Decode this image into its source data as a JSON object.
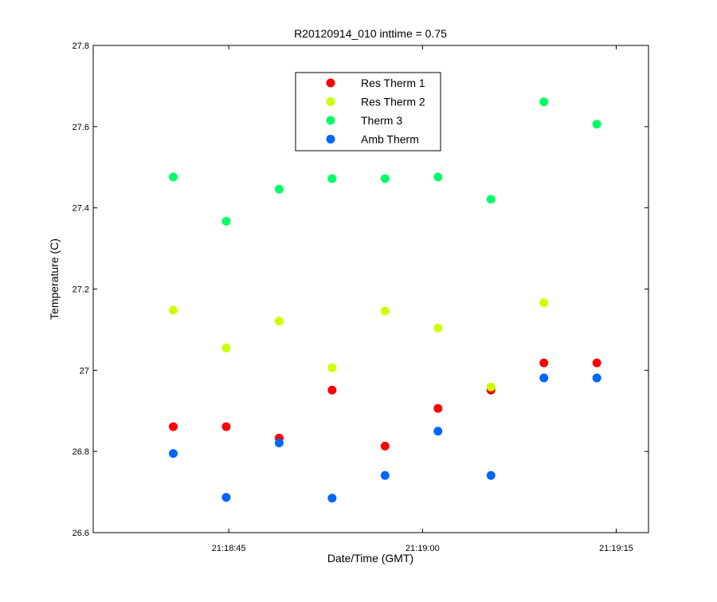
{
  "chart_data": {
    "type": "scatter",
    "title": "R20120914_010 inttime = 0.75",
    "xlabel": "Date/Time (GMT)",
    "ylabel": "Temperature (C)",
    "xlim": [
      "21:18:34.5",
      "21:19:17.5"
    ],
    "ylim": [
      26.6,
      27.8
    ],
    "x_ticks": [
      "21:18:45",
      "21:19:00",
      "21:19:15"
    ],
    "y_ticks": [
      "26.6",
      "26.8",
      "27",
      "27.2",
      "27.4",
      "27.6",
      "27.8"
    ],
    "y_tick_values": [
      26.6,
      26.8,
      27.0,
      27.2,
      27.4,
      27.6,
      27.8
    ],
    "grid": false,
    "legend_position": "top-center",
    "x": [
      "21:18:40.7",
      "21:18:44.8",
      "21:18:48.9",
      "21:18:53.0",
      "21:18:57.1",
      "21:19:01.2",
      "21:19:05.3",
      "21:19:09.4",
      "21:19:13.5"
    ],
    "series": [
      {
        "name": "Res Therm 1",
        "color": "#ff0000",
        "values": [
          26.861,
          26.861,
          26.833,
          26.951,
          26.813,
          26.906,
          26.951,
          27.018,
          27.018
        ]
      },
      {
        "name": "Res Therm 2",
        "color": "#ccff00",
        "values": [
          27.148,
          27.055,
          27.121,
          27.006,
          27.146,
          27.104,
          26.959,
          27.166,
          null
        ]
      },
      {
        "name": "Therm 3",
        "color": "#00ff66",
        "values": [
          27.476,
          27.367,
          27.446,
          27.472,
          27.472,
          27.476,
          27.421,
          27.661,
          27.606
        ]
      },
      {
        "name": "Amb Therm",
        "color": "#0066ff",
        "values": [
          26.795,
          26.687,
          26.821,
          26.685,
          26.741,
          26.85,
          26.741,
          26.981,
          26.981
        ]
      }
    ]
  }
}
